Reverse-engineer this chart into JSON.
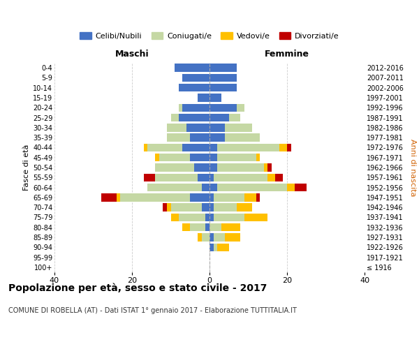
{
  "age_groups": [
    "100+",
    "95-99",
    "90-94",
    "85-89",
    "80-84",
    "75-79",
    "70-74",
    "65-69",
    "60-64",
    "55-59",
    "50-54",
    "45-49",
    "40-44",
    "35-39",
    "30-34",
    "25-29",
    "20-24",
    "15-19",
    "10-14",
    "5-9",
    "0-4"
  ],
  "birth_years": [
    "≤ 1916",
    "1917-1921",
    "1922-1926",
    "1927-1931",
    "1932-1936",
    "1937-1941",
    "1942-1946",
    "1947-1951",
    "1952-1956",
    "1957-1961",
    "1962-1966",
    "1967-1971",
    "1972-1976",
    "1977-1981",
    "1982-1986",
    "1987-1991",
    "1992-1996",
    "1997-2001",
    "2002-2006",
    "2007-2011",
    "2012-2016"
  ],
  "males": {
    "celibe": [
      0,
      0,
      0,
      0,
      1,
      1,
      2,
      5,
      2,
      3,
      4,
      5,
      7,
      5,
      6,
      8,
      7,
      3,
      8,
      7,
      9
    ],
    "coniugato": [
      0,
      0,
      0,
      2,
      4,
      7,
      8,
      18,
      14,
      11,
      10,
      8,
      9,
      6,
      5,
      2,
      1,
      0,
      0,
      0,
      0
    ],
    "vedovo": [
      0,
      0,
      0,
      1,
      2,
      2,
      1,
      1,
      0,
      0,
      0,
      1,
      1,
      0,
      0,
      0,
      0,
      0,
      0,
      0,
      0
    ],
    "divorziato": [
      0,
      0,
      0,
      0,
      0,
      0,
      1,
      4,
      0,
      3,
      0,
      0,
      0,
      0,
      0,
      0,
      0,
      0,
      0,
      0,
      0
    ]
  },
  "females": {
    "nubile": [
      0,
      0,
      1,
      1,
      0,
      1,
      1,
      1,
      2,
      1,
      2,
      2,
      2,
      4,
      4,
      5,
      7,
      3,
      7,
      7,
      7
    ],
    "coniugata": [
      0,
      0,
      1,
      3,
      3,
      8,
      6,
      8,
      18,
      14,
      12,
      10,
      16,
      9,
      7,
      3,
      2,
      0,
      0,
      0,
      0
    ],
    "vedova": [
      0,
      0,
      3,
      4,
      5,
      6,
      4,
      3,
      2,
      2,
      1,
      1,
      2,
      0,
      0,
      0,
      0,
      0,
      0,
      0,
      0
    ],
    "divorziata": [
      0,
      0,
      0,
      0,
      0,
      0,
      0,
      1,
      3,
      2,
      1,
      0,
      1,
      0,
      0,
      0,
      0,
      0,
      0,
      0,
      0
    ]
  },
  "colors": {
    "celibe": "#4472c4",
    "coniugato": "#c5d8a4",
    "vedovo": "#ffc000",
    "divorziato": "#c00000"
  },
  "title": "Popolazione per età, sesso e stato civile - 2017",
  "subtitle": "COMUNE DI ROBELLA (AT) - Dati ISTAT 1° gennaio 2017 - Elaborazione TUTTITALIA.IT",
  "ylabel_left": "Fasce di età",
  "ylabel_right": "Anni di nascita",
  "xlabel_left": "Maschi",
  "xlabel_right": "Femmine",
  "xlim": 40,
  "legend_labels": [
    "Celibi/Nubili",
    "Coniugati/e",
    "Vedovi/e",
    "Divorziati/e"
  ],
  "background_color": "#ffffff",
  "grid_color": "#cccccc"
}
